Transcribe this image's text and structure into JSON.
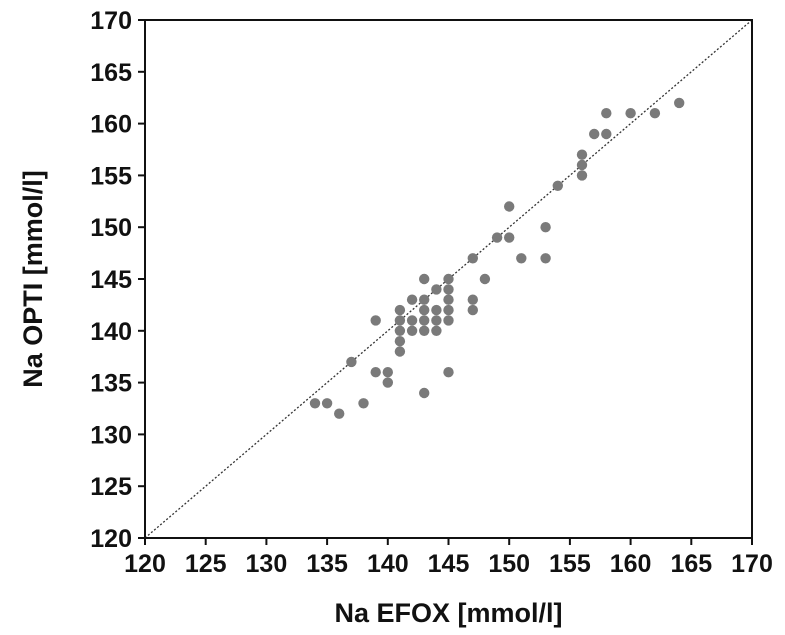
{
  "chart_data": {
    "type": "scatter",
    "title": "",
    "xlabel": "Na EFOX [mmol/l]",
    "ylabel": "Na OPTI [mmol/l]",
    "xlim": [
      120,
      170
    ],
    "ylim": [
      120,
      170
    ],
    "xticks": [
      "120",
      "125",
      "130",
      "135",
      "140",
      "145",
      "150",
      "155",
      "160",
      "165",
      "170"
    ],
    "yticks": [
      "120",
      "125",
      "130",
      "135",
      "140",
      "145",
      "150",
      "155",
      "160",
      "165",
      "170"
    ],
    "grid": false,
    "reference_line": {
      "type": "identity",
      "style": "dotted",
      "from": [
        120,
        120
      ],
      "to": [
        170,
        170
      ]
    },
    "colors": {
      "points": "#7a7a7a",
      "line": "#333333",
      "frame": "#111111"
    },
    "series": [
      {
        "points": [
          [
            134,
            133
          ],
          [
            135,
            133
          ],
          [
            136,
            132
          ],
          [
            137,
            137
          ],
          [
            138,
            133
          ],
          [
            139,
            141
          ],
          [
            139,
            136
          ],
          [
            140,
            136
          ],
          [
            140,
            135
          ],
          [
            141,
            142
          ],
          [
            141,
            141
          ],
          [
            141,
            140
          ],
          [
            141,
            139
          ],
          [
            141,
            138
          ],
          [
            142,
            143
          ],
          [
            142,
            141
          ],
          [
            142,
            140
          ],
          [
            143,
            145
          ],
          [
            143,
            143
          ],
          [
            143,
            142
          ],
          [
            143,
            141
          ],
          [
            143,
            140
          ],
          [
            143,
            134
          ],
          [
            144,
            144
          ],
          [
            144,
            142
          ],
          [
            144,
            141
          ],
          [
            144,
            140
          ],
          [
            145,
            145
          ],
          [
            145,
            144
          ],
          [
            145,
            143
          ],
          [
            145,
            142
          ],
          [
            145,
            141
          ],
          [
            145,
            136
          ],
          [
            147,
            147
          ],
          [
            147,
            143
          ],
          [
            147,
            142
          ],
          [
            148,
            145
          ],
          [
            149,
            149
          ],
          [
            150,
            152
          ],
          [
            150,
            149
          ],
          [
            151,
            147
          ],
          [
            153,
            150
          ],
          [
            153,
            147
          ],
          [
            154,
            154
          ],
          [
            156,
            157
          ],
          [
            156,
            156
          ],
          [
            156,
            155
          ],
          [
            157,
            159
          ],
          [
            158,
            161
          ],
          [
            158,
            159
          ],
          [
            160,
            161
          ],
          [
            162,
            161
          ],
          [
            164,
            162
          ]
        ]
      }
    ]
  }
}
